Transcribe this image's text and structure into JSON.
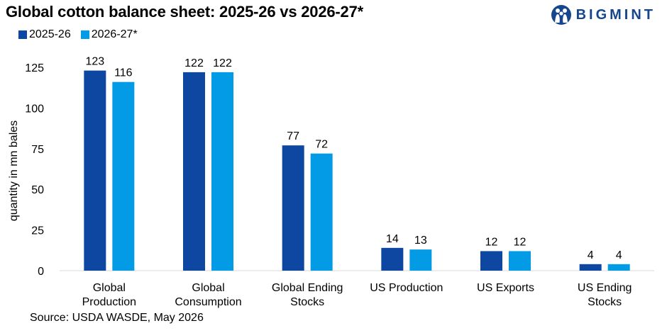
{
  "title": "Global cotton balance sheet: 2025-26 vs 2026-27*",
  "brand": {
    "name": "BIGMINT",
    "logo_icon": "people-group-icon",
    "color": "#16468e"
  },
  "source": "Source: USDA WASDE, May 2026",
  "chart_data": {
    "type": "bar",
    "title": "Global cotton balance sheet: 2025-26 vs 2026-27*",
    "ylabel": "quantity in mn bales",
    "xlabel": "",
    "ylim": [
      0,
      125
    ],
    "yticks": [
      0,
      25,
      50,
      75,
      100,
      125
    ],
    "grid": false,
    "legend_position": "top-left",
    "categories": [
      [
        "Global",
        "Production"
      ],
      [
        "Global",
        "Consumption"
      ],
      [
        "Global Ending",
        "Stocks"
      ],
      [
        "US Production"
      ],
      [
        "US Exports"
      ],
      [
        "US Ending",
        "Stocks"
      ]
    ],
    "series": [
      {
        "name": "2025-26",
        "color": "#0d47a1",
        "values": [
          123,
          122,
          77,
          14,
          12,
          4
        ]
      },
      {
        "name": "2026-27*",
        "color": "#039be5",
        "values": [
          116,
          122,
          72,
          13,
          12,
          4
        ]
      }
    ]
  }
}
